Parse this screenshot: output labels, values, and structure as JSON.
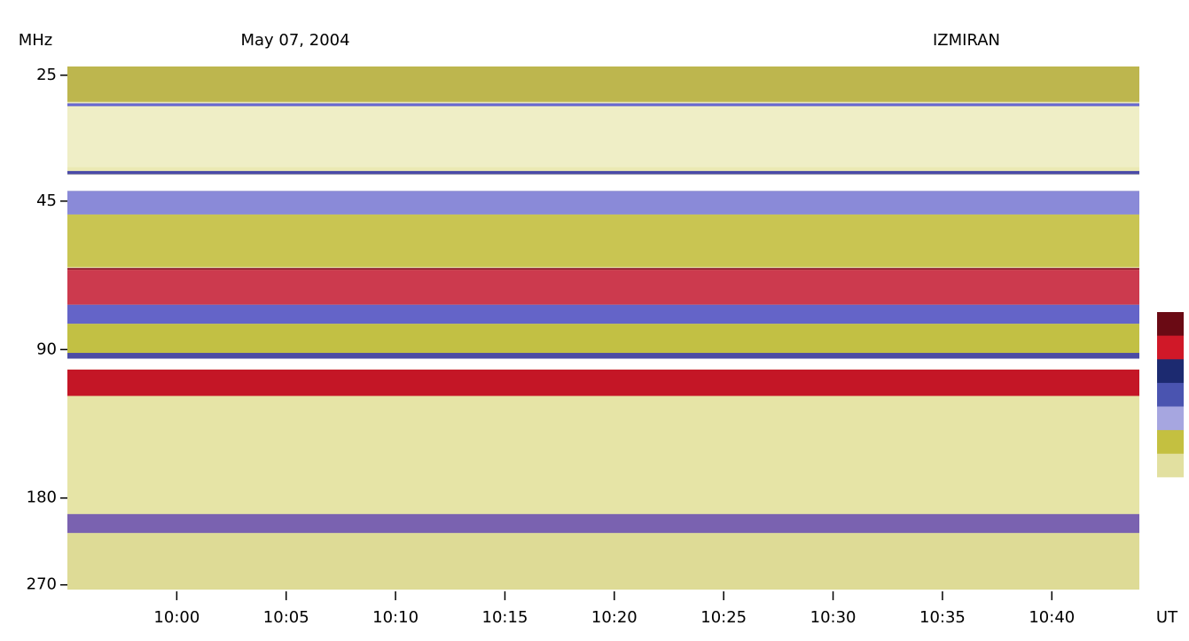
{
  "chart_data": {
    "type": "spectrogram",
    "title": "May 07, 2004",
    "station": "IZMIRAN",
    "y_label": "MHz",
    "x_label": "UT",
    "ylog": true,
    "y_inverted": true,
    "ylim": [
      24,
      276
    ],
    "yticks": [
      25,
      45,
      90,
      180,
      270
    ],
    "xlim": [
      "09:55",
      "10:44"
    ],
    "xticks": [
      "10:00",
      "10:05",
      "10:10",
      "10:15",
      "10:20",
      "10:25",
      "10:30",
      "10:35",
      "10:40"
    ],
    "background": "#ebe9b4",
    "bands": [
      {
        "from": 24,
        "to": 28.3,
        "color": "#bdb64e"
      },
      {
        "from": 28.5,
        "to": 28.9,
        "color": "#6a6ad0"
      },
      {
        "from": 28.9,
        "to": 38.4,
        "color": "#efeec6"
      },
      {
        "from": 39.1,
        "to": 39.7,
        "color": "#4a4aa8"
      },
      {
        "from": 39.8,
        "to": 42.9,
        "color": "#ffffff"
      },
      {
        "from": 42.9,
        "to": 47.9,
        "color": "#8a8ad8"
      },
      {
        "from": 47.9,
        "to": 61.2,
        "color": "#c9c552"
      },
      {
        "from": 61.5,
        "to": 62.0,
        "color": "#8a1428"
      },
      {
        "from": 62.0,
        "to": 73.0,
        "color": "#cc3a4e"
      },
      {
        "from": 73.0,
        "to": 79.8,
        "color": "#6464c8"
      },
      {
        "from": 79.8,
        "to": 91.4,
        "color": "#c2c044"
      },
      {
        "from": 91.4,
        "to": 93.9,
        "color": "#4c4ca4"
      },
      {
        "from": 93.9,
        "to": 98.8,
        "color": "#ffffff"
      },
      {
        "from": 98.8,
        "to": 111.8,
        "color": "#c41626"
      },
      {
        "from": 111.8,
        "to": 194,
        "color": "#e6e4a6"
      },
      {
        "from": 194,
        "to": 212,
        "color": "#7a62b0"
      },
      {
        "from": 212,
        "to": 276,
        "color": "#dedb96"
      }
    ],
    "colorbar": [
      "#6a0a14",
      "#d01828",
      "#1c2a70",
      "#4a54b0",
      "#a6a6e0",
      "#c4c040",
      "#e2e0a0",
      "#ffffff"
    ]
  }
}
